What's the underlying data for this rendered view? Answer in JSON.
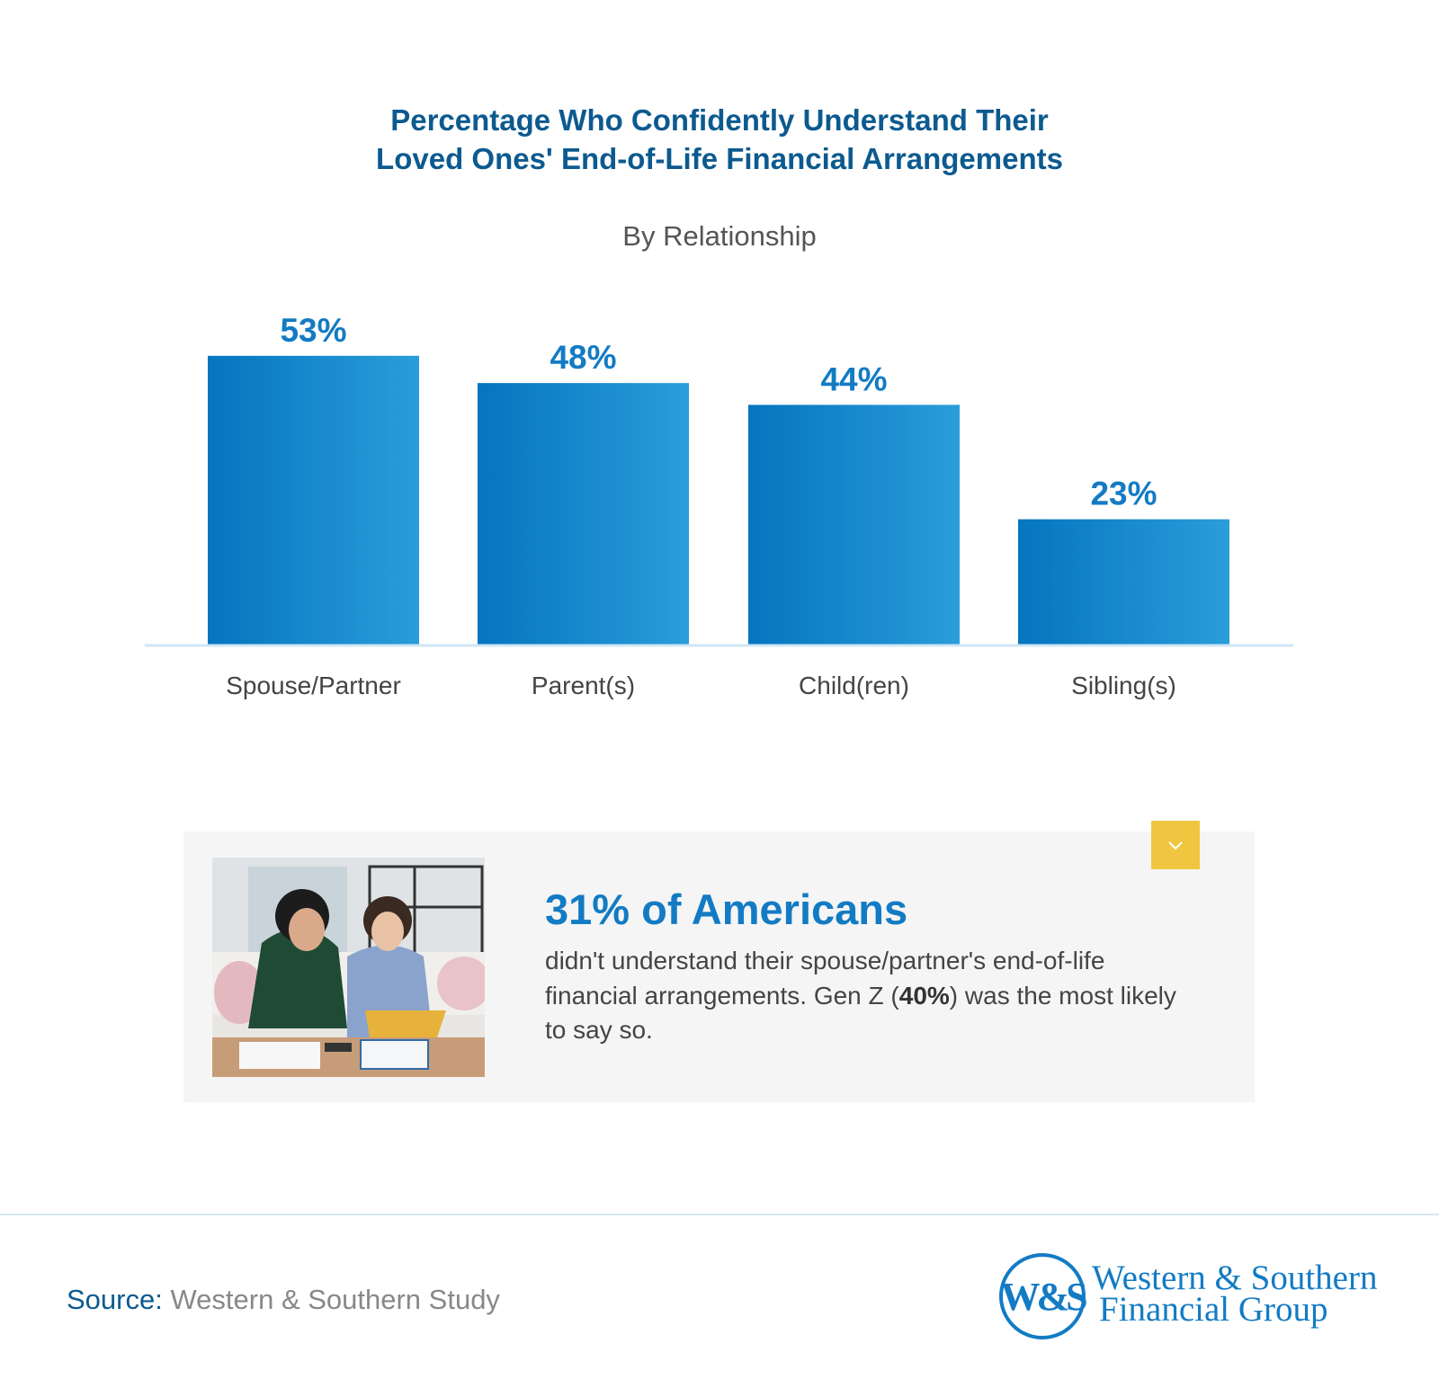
{
  "chart_data": {
    "type": "bar",
    "title": "Percentage Who Confidently Understand Their Loved Ones' End-of-Life Financial Arrangements",
    "title_lines": [
      "Percentage Who Confidently Understand Their",
      "Loved Ones' End-of-Life Financial Arrangements"
    ],
    "subtitle": "By Relationship",
    "categories": [
      "Spouse/Partner",
      "Parent(s)",
      "Child(ren)",
      "Sibling(s)"
    ],
    "values": [
      53,
      48,
      44,
      23
    ],
    "value_labels": [
      "53%",
      "48%",
      "44%",
      "23%"
    ],
    "ylim": [
      0,
      100
    ],
    "grid": false,
    "xlabel": "",
    "ylabel": "",
    "colors": {
      "bar_start": "#0575bf",
      "bar_end": "#2a9dda",
      "axis": "#cfe6f6",
      "label": "#137bc4"
    }
  },
  "callout": {
    "headline": "31% of Americans",
    "body_before": "didn't understand their spouse/partner's end-of-life financial arrangements. Gen Z (",
    "body_bold": "40%",
    "body_after": ") was the most likely to say so.",
    "badge_icon": "chevron-down-icon",
    "badge_color": "#f0c641"
  },
  "footer": {
    "source_label": "Source:",
    "source_text": "Western & Southern Study",
    "logo_monogram": "W&S",
    "logo_line1": "Western & Southern",
    "logo_line2": "Financial Group",
    "brand_color": "#137bc4"
  }
}
